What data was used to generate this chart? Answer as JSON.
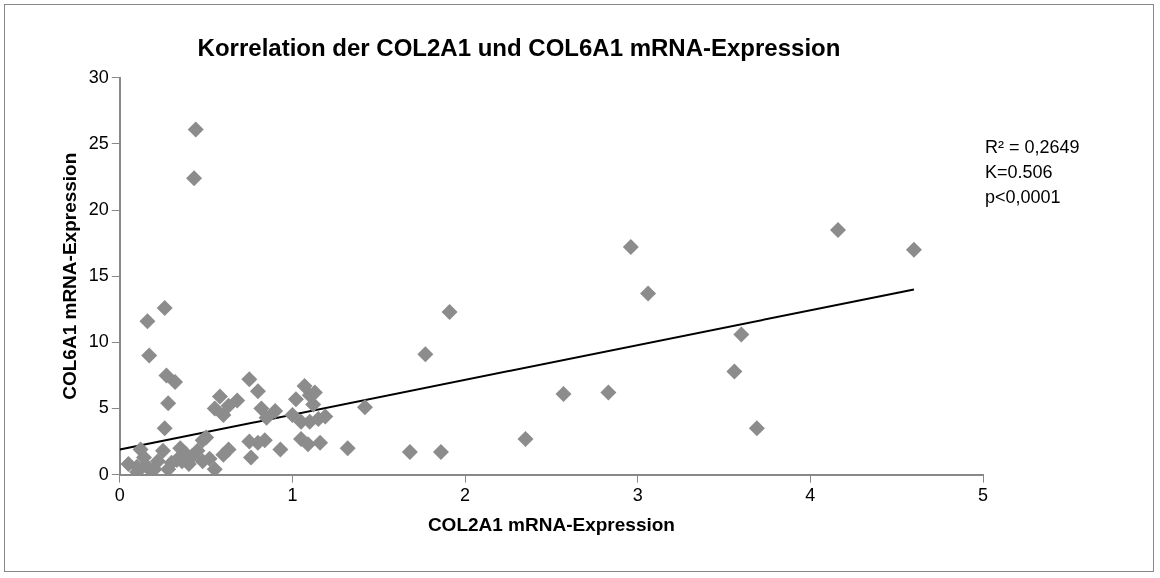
{
  "chart_data": {
    "type": "scatter",
    "title": "Korrelation der COL2A1 und COL6A1 mRNA-Expression",
    "xlabel": "COL2A1 mRNA-Expression",
    "ylabel": "COL6A1 mRNA-Expression",
    "xlim": [
      0,
      5
    ],
    "xticks": [
      0,
      1,
      2,
      3,
      4,
      5
    ],
    "ylim": [
      0,
      30
    ],
    "yticks": [
      0,
      5,
      10,
      15,
      20,
      25,
      30
    ],
    "grid": false,
    "legend": false,
    "marker": "diamond",
    "annotations": [
      "R² = 0,2649",
      "K=0.506",
      "p<0,0001"
    ],
    "series": [
      {
        "type": "scatter",
        "color": "#8c8c8c",
        "x": [
          0.44,
          0.43,
          0.16,
          0.26,
          0.17,
          0.27,
          0.32,
          0.28,
          0.26,
          1.91,
          1.77,
          1.42,
          1.32,
          1.68,
          1.86,
          2.35,
          2.57,
          2.83,
          2.96,
          3.06,
          3.56,
          3.6,
          3.69,
          4.16,
          4.6,
          0.55,
          0.58,
          0.6,
          0.63,
          0.68,
          0.75,
          0.8,
          0.82,
          0.85,
          0.9,
          0.84,
          0.8,
          0.75,
          0.76,
          0.93,
          1.0,
          1.02,
          1.07,
          1.1,
          1.13,
          1.05,
          1.1,
          1.15,
          1.19,
          1.05,
          1.09,
          1.16,
          1.12,
          0.6,
          0.63,
          0.55,
          0.52,
          0.48,
          0.45,
          0.48,
          0.4,
          0.38,
          0.35,
          0.33,
          0.3,
          0.25,
          0.22,
          0.2,
          0.18,
          0.14,
          0.12,
          0.1,
          0.05,
          0.1,
          0.15,
          0.28,
          0.42,
          0.5,
          0.36
        ],
        "values": [
          26.1,
          22.4,
          11.6,
          12.6,
          9.0,
          7.5,
          7.0,
          5.4,
          3.5,
          12.3,
          9.1,
          5.1,
          2.0,
          1.7,
          1.7,
          2.7,
          6.1,
          6.2,
          17.2,
          13.7,
          7.8,
          10.6,
          3.5,
          18.5,
          17.0,
          5.0,
          5.9,
          4.5,
          5.2,
          5.6,
          7.2,
          6.3,
          5.0,
          4.3,
          4.8,
          2.6,
          2.4,
          2.5,
          1.3,
          1.9,
          4.5,
          5.7,
          6.7,
          6.0,
          6.2,
          4.0,
          4.0,
          4.2,
          4.4,
          2.7,
          2.3,
          2.4,
          5.3,
          1.5,
          1.9,
          0.4,
          1.2,
          2.6,
          1.8,
          1.0,
          0.8,
          1.6,
          2.0,
          1.1,
          0.9,
          1.8,
          1.0,
          0.4,
          0.3,
          1.3,
          1.9,
          0.6,
          0.8,
          0.2,
          0.7,
          0.4,
          1.4,
          2.8,
          1.0
        ]
      },
      {
        "type": "line",
        "color": "#000000",
        "marker": "none",
        "x": [
          0,
          4.6
        ],
        "values": [
          1.9,
          14.0
        ]
      }
    ]
  }
}
